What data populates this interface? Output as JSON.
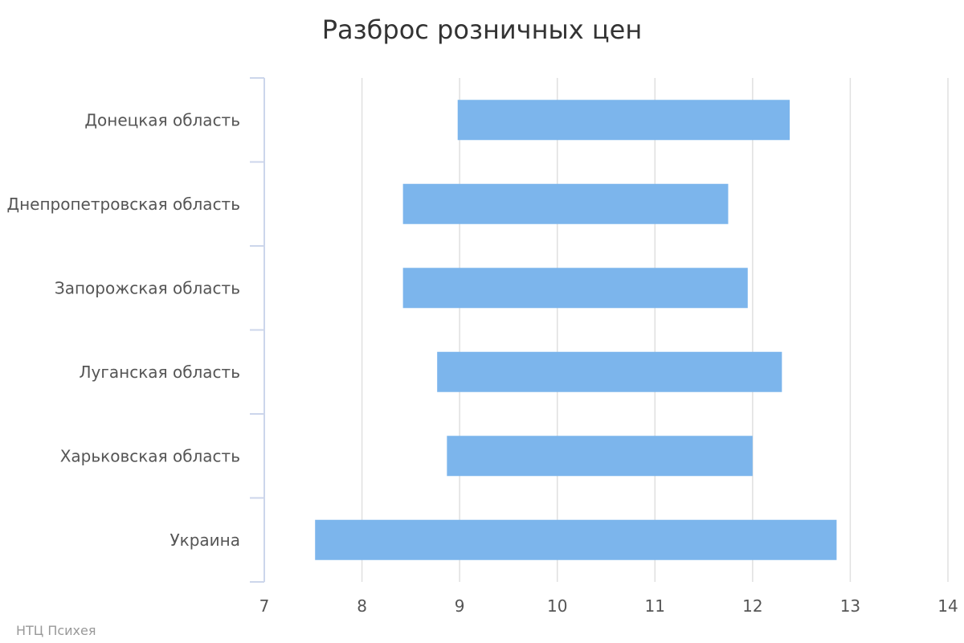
{
  "chart_data": {
    "type": "bar",
    "orientation": "horizontal",
    "subtype": "range",
    "title": "Разброс розничных цен",
    "xlabel": "",
    "ylabel": "",
    "categories": [
      "Донецкая область",
      "Днепропетровская область",
      "Запорожская область",
      "Луганская область",
      "Харьковская область",
      "Украина"
    ],
    "ranges": [
      {
        "low": 8.98,
        "high": 12.38
      },
      {
        "low": 8.42,
        "high": 11.75
      },
      {
        "low": 8.42,
        "high": 11.95
      },
      {
        "low": 8.77,
        "high": 12.3
      },
      {
        "low": 8.87,
        "high": 12.0
      },
      {
        "low": 7.52,
        "high": 12.86
      }
    ],
    "xlim": [
      7,
      14
    ],
    "xticks": [
      "7",
      "8",
      "9",
      "10",
      "11",
      "12",
      "13",
      "14"
    ],
    "grid": true,
    "legend": "none",
    "bar_color": "#7cb5ec",
    "credit": "НТЦ Психея"
  }
}
